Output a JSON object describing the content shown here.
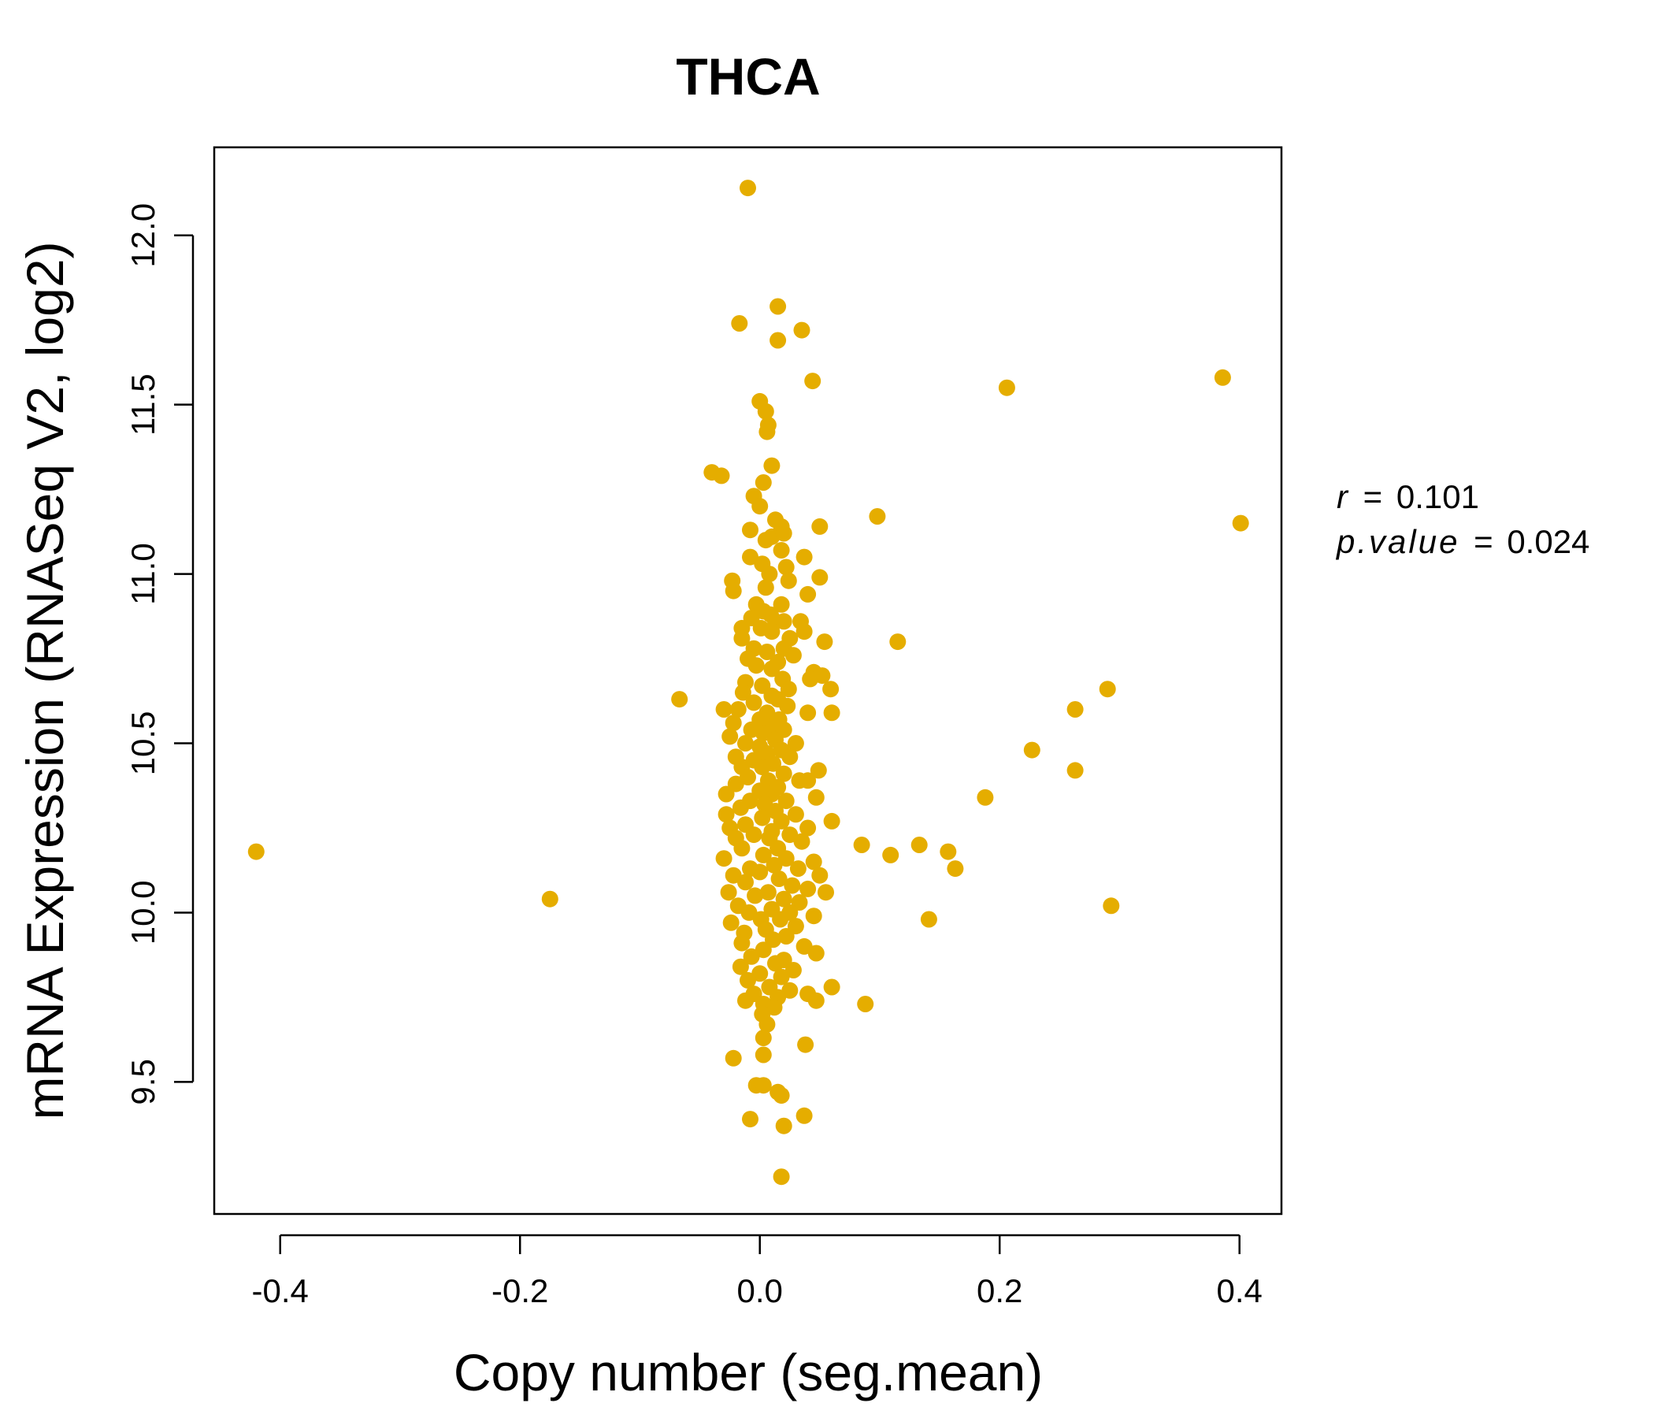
{
  "accent_color": "#E5AD00",
  "stats": {
    "r_label": "r",
    "r_value": "0.101",
    "p_label": "p.value",
    "p_value": "0.024",
    "equals": "="
  },
  "chart_data": {
    "type": "scatter",
    "title": "THCA",
    "xlabel": "Copy number (seg.mean)",
    "ylabel": "mRNA Expression (RNASeq V2, log2)",
    "xlim": [
      -0.455,
      0.435
    ],
    "ylim": [
      9.11,
      12.26
    ],
    "xticks": [
      -0.4,
      -0.2,
      0.0,
      0.2,
      0.4
    ],
    "xtick_labels": [
      "-0.4",
      "-0.2",
      "0.0",
      "0.2",
      "0.4"
    ],
    "yticks": [
      9.5,
      10.0,
      10.5,
      11.0,
      11.5,
      12.0
    ],
    "ytick_labels": [
      "9.5",
      "10.0",
      "10.5",
      "11.0",
      "11.5",
      "12.0"
    ],
    "grid": false,
    "legend": "none",
    "color": "#E5AD00",
    "points": [
      [
        -0.42,
        10.18
      ],
      [
        -0.175,
        10.04
      ],
      [
        -0.067,
        10.63
      ],
      [
        -0.04,
        11.3
      ],
      [
        -0.032,
        11.29
      ],
      [
        -0.01,
        12.14
      ],
      [
        -0.017,
        11.74
      ],
      [
        0.015,
        11.79
      ],
      [
        0.035,
        11.72
      ],
      [
        0.015,
        11.69
      ],
      [
        0.044,
        11.57
      ],
      [
        0.0,
        11.51
      ],
      [
        0.005,
        11.48
      ],
      [
        0.007,
        11.44
      ],
      [
        0.006,
        11.42
      ],
      [
        0.01,
        11.32
      ],
      [
        0.003,
        11.27
      ],
      [
        -0.005,
        11.23
      ],
      [
        0.0,
        11.2
      ],
      [
        0.013,
        11.16
      ],
      [
        0.05,
        11.14
      ],
      [
        0.018,
        11.14
      ],
      [
        -0.008,
        11.13
      ],
      [
        0.005,
        11.1
      ],
      [
        0.01,
        11.11
      ],
      [
        0.02,
        11.12
      ],
      [
        0.018,
        11.07
      ],
      [
        -0.008,
        11.05
      ],
      [
        0.037,
        11.05
      ],
      [
        0.002,
        11.03
      ],
      [
        0.022,
        11.02
      ],
      [
        0.008,
        11.0
      ],
      [
        0.05,
        10.99
      ],
      [
        0.024,
        10.98
      ],
      [
        -0.023,
        10.98
      ],
      [
        -0.022,
        10.95
      ],
      [
        0.005,
        10.96
      ],
      [
        0.04,
        10.94
      ],
      [
        -0.003,
        10.91
      ],
      [
        0.018,
        10.91
      ],
      [
        0.003,
        10.89
      ],
      [
        0.009,
        10.88
      ],
      [
        0.013,
        10.86
      ],
      [
        0.034,
        10.86
      ],
      [
        -0.007,
        10.87
      ],
      [
        0.02,
        10.86
      ],
      [
        0.001,
        10.84
      ],
      [
        -0.015,
        10.84
      ],
      [
        0.01,
        10.83
      ],
      [
        0.037,
        10.83
      ],
      [
        -0.015,
        10.81
      ],
      [
        0.025,
        10.81
      ],
      [
        0.054,
        10.8
      ],
      [
        0.115,
        10.8
      ],
      [
        -0.005,
        10.78
      ],
      [
        0.006,
        10.77
      ],
      [
        0.02,
        10.78
      ],
      [
        -0.01,
        10.75
      ],
      [
        0.015,
        10.74
      ],
      [
        0.028,
        10.76
      ],
      [
        -0.003,
        10.73
      ],
      [
        0.01,
        10.72
      ],
      [
        0.045,
        10.71
      ],
      [
        0.042,
        10.69
      ],
      [
        0.052,
        10.7
      ],
      [
        0.019,
        10.69
      ],
      [
        -0.012,
        10.68
      ],
      [
        0.002,
        10.67
      ],
      [
        0.059,
        10.66
      ],
      [
        0.024,
        10.66
      ],
      [
        -0.014,
        10.65
      ],
      [
        0.01,
        10.64
      ],
      [
        -0.005,
        10.62
      ],
      [
        0.015,
        10.63
      ],
      [
        0.023,
        10.61
      ],
      [
        -0.03,
        10.6
      ],
      [
        -0.018,
        10.6
      ],
      [
        0.006,
        10.59
      ],
      [
        0.04,
        10.59
      ],
      [
        0.06,
        10.59
      ],
      [
        0.263,
        10.6
      ],
      [
        0.29,
        10.66
      ],
      [
        0.0,
        10.57
      ],
      [
        0.016,
        10.57
      ],
      [
        -0.022,
        10.56
      ],
      [
        0.01,
        10.55
      ],
      [
        -0.007,
        10.54
      ],
      [
        0.02,
        10.54
      ],
      [
        0.003,
        10.53
      ],
      [
        -0.025,
        10.52
      ],
      [
        0.013,
        10.51
      ],
      [
        0.03,
        10.5
      ],
      [
        -0.012,
        10.5
      ],
      [
        0.0,
        10.49
      ],
      [
        0.018,
        10.48
      ],
      [
        0.227,
        10.48
      ],
      [
        0.006,
        10.47
      ],
      [
        -0.02,
        10.46
      ],
      [
        0.025,
        10.46
      ],
      [
        -0.005,
        10.45
      ],
      [
        0.011,
        10.44
      ],
      [
        0.002,
        10.43
      ],
      [
        -0.015,
        10.43
      ],
      [
        0.049,
        10.42
      ],
      [
        0.263,
        10.42
      ],
      [
        0.02,
        10.41
      ],
      [
        -0.01,
        10.4
      ],
      [
        0.007,
        10.39
      ],
      [
        0.04,
        10.39
      ],
      [
        0.033,
        10.39
      ],
      [
        -0.02,
        10.38
      ],
      [
        0.015,
        10.37
      ],
      [
        0.0,
        10.36
      ],
      [
        -0.028,
        10.35
      ],
      [
        0.01,
        10.35
      ],
      [
        0.047,
        10.34
      ],
      [
        0.188,
        10.34
      ],
      [
        -0.008,
        10.33
      ],
      [
        0.022,
        10.33
      ],
      [
        0.004,
        10.32
      ],
      [
        -0.016,
        10.31
      ],
      [
        0.013,
        10.3
      ],
      [
        -0.028,
        10.29
      ],
      [
        0.03,
        10.29
      ],
      [
        0.002,
        10.28
      ],
      [
        0.06,
        10.27
      ],
      [
        0.018,
        10.27
      ],
      [
        -0.012,
        10.26
      ],
      [
        -0.025,
        10.25
      ],
      [
        0.04,
        10.25
      ],
      [
        0.01,
        10.24
      ],
      [
        0.025,
        10.23
      ],
      [
        -0.005,
        10.23
      ],
      [
        -0.02,
        10.22
      ],
      [
        0.008,
        10.22
      ],
      [
        0.035,
        10.21
      ],
      [
        0.085,
        10.2
      ],
      [
        0.133,
        10.2
      ],
      [
        0.015,
        10.19
      ],
      [
        -0.015,
        10.19
      ],
      [
        0.157,
        10.18
      ],
      [
        0.109,
        10.17
      ],
      [
        0.003,
        10.17
      ],
      [
        0.022,
        10.16
      ],
      [
        -0.03,
        10.16
      ],
      [
        0.045,
        10.15
      ],
      [
        0.012,
        10.14
      ],
      [
        -0.008,
        10.13
      ],
      [
        0.163,
        10.13
      ],
      [
        0.032,
        10.13
      ],
      [
        0.0,
        10.12
      ],
      [
        -0.022,
        10.11
      ],
      [
        0.05,
        10.11
      ],
      [
        0.016,
        10.1
      ],
      [
        -0.012,
        10.09
      ],
      [
        0.027,
        10.08
      ],
      [
        0.04,
        10.07
      ],
      [
        -0.026,
        10.06
      ],
      [
        0.007,
        10.06
      ],
      [
        0.055,
        10.06
      ],
      [
        -0.004,
        10.05
      ],
      [
        0.02,
        10.04
      ],
      [
        0.033,
        10.03
      ],
      [
        -0.018,
        10.02
      ],
      [
        0.293,
        10.02
      ],
      [
        0.01,
        10.01
      ],
      [
        0.025,
        10.0
      ],
      [
        -0.009,
        10.0
      ],
      [
        0.045,
        9.99
      ],
      [
        0.001,
        9.98
      ],
      [
        0.141,
        9.98
      ],
      [
        0.017,
        9.98
      ],
      [
        -0.024,
        9.97
      ],
      [
        0.03,
        9.96
      ],
      [
        0.005,
        9.95
      ],
      [
        -0.013,
        9.94
      ],
      [
        0.022,
        9.93
      ],
      [
        0.011,
        9.92
      ],
      [
        -0.015,
        9.91
      ],
      [
        0.037,
        9.9
      ],
      [
        0.003,
        9.89
      ],
      [
        0.047,
        9.88
      ],
      [
        -0.007,
        9.87
      ],
      [
        0.02,
        9.86
      ],
      [
        0.013,
        9.85
      ],
      [
        -0.016,
        9.84
      ],
      [
        0.028,
        9.83
      ],
      [
        0.0,
        9.82
      ],
      [
        0.018,
        9.81
      ],
      [
        -0.01,
        9.8
      ],
      [
        0.06,
        9.78
      ],
      [
        0.008,
        9.78
      ],
      [
        0.025,
        9.77
      ],
      [
        -0.005,
        9.76
      ],
      [
        0.04,
        9.76
      ],
      [
        0.015,
        9.75
      ],
      [
        0.047,
        9.74
      ],
      [
        -0.012,
        9.74
      ],
      [
        0.003,
        9.73
      ],
      [
        0.088,
        9.73
      ],
      [
        0.012,
        9.72
      ],
      [
        0.002,
        9.7
      ],
      [
        0.006,
        9.67
      ],
      [
        0.003,
        9.63
      ],
      [
        0.038,
        9.61
      ],
      [
        0.003,
        9.58
      ],
      [
        -0.022,
        9.57
      ],
      [
        -0.003,
        9.49
      ],
      [
        0.003,
        9.49
      ],
      [
        0.015,
        9.47
      ],
      [
        0.018,
        9.46
      ],
      [
        0.037,
        9.4
      ],
      [
        -0.008,
        9.39
      ],
      [
        0.02,
        9.37
      ],
      [
        0.018,
        9.22
      ],
      [
        0.206,
        11.55
      ],
      [
        0.386,
        11.58
      ],
      [
        0.401,
        11.15
      ],
      [
        0.098,
        11.17
      ]
    ]
  }
}
